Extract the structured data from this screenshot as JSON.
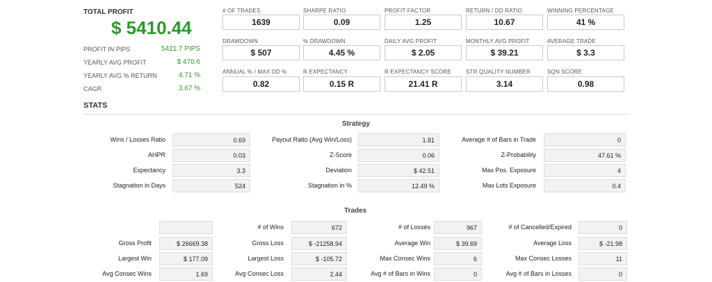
{
  "summary": {
    "total_profit_label": "TOTAL PROFIT",
    "total_profit_value": "$ 5410.44",
    "rows": [
      {
        "label": "PROFIT IN PIPS",
        "value": "5421.7 PIPS"
      },
      {
        "label": "YEARLY AVG PROFIT",
        "value": "$ 470.6"
      },
      {
        "label": "YEARLY AVG % RETURN",
        "value": "4.71 %"
      },
      {
        "label": "CAGR",
        "value": "3.67 %"
      }
    ]
  },
  "metrics": [
    {
      "label": "# OF TRADES",
      "value": "1639"
    },
    {
      "label": "SHARPE RATIO",
      "value": "0.09"
    },
    {
      "label": "PROFIT FACTOR",
      "value": "1.25"
    },
    {
      "label": "RETURN / DD RATIO",
      "value": "10.67"
    },
    {
      "label": "WINNING PERCENTAGE",
      "value": "41 %"
    },
    {
      "label": "DRAWDOWN",
      "value": "$ 507"
    },
    {
      "label": "% DRAWDOWN",
      "value": "4.45 %"
    },
    {
      "label": "DAILY AVG PROFIT",
      "value": "$ 2.05"
    },
    {
      "label": "MONTHLY AVG PROFIT",
      "value": "$ 39.21"
    },
    {
      "label": "AVERAGE TRADE",
      "value": "$ 3.3"
    },
    {
      "label": "ANNUAL % / MAX DD %",
      "value": "0.82"
    },
    {
      "label": "R EXPECTANCY",
      "value": "0.15 R"
    },
    {
      "label": "R EXPECTANCY SCORE",
      "value": "21.41 R"
    },
    {
      "label": "STR QUALITY NUMBER",
      "value": "3.14"
    },
    {
      "label": "SQN SCORE",
      "value": "0.98"
    }
  ],
  "stats_title": "STATS",
  "strategy": {
    "title": "Strategy",
    "rows": [
      [
        [
          "Wins / Losses Ratio",
          "0.69"
        ],
        [
          "Payout Ratio (Avg Win/Loss)",
          "1.81"
        ],
        [
          "Average # of Bars in Trade",
          "0"
        ]
      ],
      [
        [
          "AHPR",
          "0.03"
        ],
        [
          "Z-Score",
          "0.06"
        ],
        [
          "Z-Probability",
          "47.61 %"
        ]
      ],
      [
        [
          "Expectancy",
          "3.3"
        ],
        [
          "Deviation",
          "$ 42.51"
        ],
        [
          "Max Pos. Exposure",
          "4"
        ]
      ],
      [
        [
          "Stagnation in Days",
          "524"
        ],
        [
          "Stagnation in %",
          "12.49 %"
        ],
        [
          "Max Lots Exposure",
          "0.4"
        ]
      ]
    ]
  },
  "trades": {
    "title": "Trades",
    "rows": [
      [
        [
          "",
          ""
        ],
        [
          "# of Wins",
          "672"
        ],
        [
          "# of Losses",
          "967"
        ],
        [
          "# of Cancelled/Expired",
          "0"
        ]
      ],
      [
        [
          "Gross Profit",
          "$ 26669.38"
        ],
        [
          "Gross Loss",
          "$ -21258.94"
        ],
        [
          "Average Win",
          "$ 39.69"
        ],
        [
          "Average Loss",
          "$ -21.98"
        ]
      ],
      [
        [
          "Largest Win",
          "$ 177.09"
        ],
        [
          "Largest Loss",
          "$ -105.72"
        ],
        [
          "Max Consec Wins",
          "6"
        ],
        [
          "Max Consec Losses",
          "11"
        ]
      ],
      [
        [
          "Avg Consec Wins",
          "1.69"
        ],
        [
          "Avg Consec Loss",
          "2.44"
        ],
        [
          "Avg # of Bars in Wins",
          "0"
        ],
        [
          "Avg # of Bars in Losses",
          "0"
        ]
      ]
    ]
  }
}
